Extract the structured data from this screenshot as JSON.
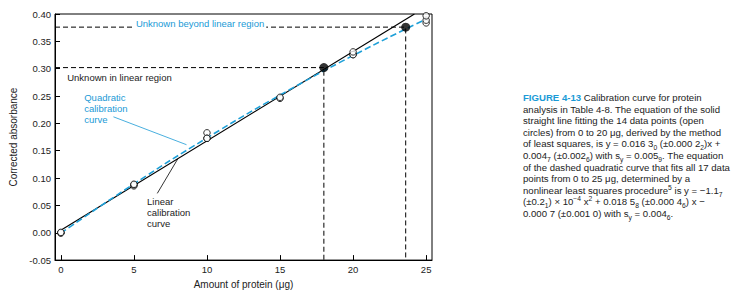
{
  "chart_data": {
    "type": "scatter",
    "x_label": "Amount of protein (μg)",
    "y_label": "Corrected absorbance",
    "xlim": [
      -0.4,
      25.4
    ],
    "xticks": [
      0,
      5,
      10,
      15,
      20,
      25
    ],
    "ylim": [
      -0.05,
      0.4
    ],
    "yticks": [
      -0.05,
      {
        "value": 0,
        "label": "0.00"
      },
      0.05,
      {
        "value": 0.1,
        "label": "0.10"
      },
      0.15,
      {
        "value": 0.2,
        "label": "0.20"
      },
      0.25,
      {
        "value": 0.3,
        "label": "0.30"
      },
      0.35,
      {
        "value": 0.4,
        "label": "0.40"
      }
    ],
    "grid": false,
    "series": [
      {
        "type": "scatter",
        "marker": "open circle",
        "color": "#000000",
        "x": [
          0,
          0,
          0,
          5,
          5,
          5,
          10,
          10,
          10,
          15,
          15,
          20,
          20,
          20,
          25,
          25,
          25
        ],
        "values": [
          -0.0003,
          -0.0003,
          0.0007,
          0.0857,
          0.0877,
          0.0887,
          0.1827,
          0.1727,
          0.1727,
          0.2457,
          0.2477,
          0.3257,
          0.3257,
          0.3307,
          0.3837,
          0.3887,
          0.3967
        ]
      },
      {
        "name": "Linear calibration curve",
        "type": "line",
        "line_style": "solid",
        "color": "#000000",
        "x": [
          0,
          24.2
        ],
        "values": [
          0.0047,
          0.4
        ]
      },
      {
        "name": "Quadratic calibration curve",
        "type": "line",
        "line_style": "dashed",
        "color": "#1ea0d8",
        "x": [
          0,
          5,
          10,
          15,
          20,
          25
        ],
        "values": [
          -0.0007,
          0.0893,
          0.1734,
          0.2517,
          0.3241,
          0.3907
        ]
      },
      {
        "name": "Unknown in linear region",
        "type": "scatter",
        "marker": "filled circle",
        "line_style": "dashed",
        "color": "#000000",
        "x": [
          18.0
        ],
        "values": [
          0.302
        ]
      },
      {
        "name": "Unknown beyond linear region",
        "type": "scatter",
        "marker": "filled circle",
        "line_style": "dashed",
        "color": "#000000",
        "x": [
          23.6
        ],
        "values": [
          0.376
        ]
      }
    ],
    "caption": {
      "label": "FIGURE 4-13",
      "segments": [
        "Calibration curve for protein analysis in Table 4-8. The equation of the solid straight line fitting the 14 data points (open circles) from 0 to 20 μg, derived by the method of least squares, is y = 0.016 3",
        {
          "sub": "0"
        },
        " (±0.000 2",
        {
          "sub": "2"
        },
        ")x + 0.004",
        {
          "sub": "7"
        },
        " (±0.002",
        {
          "sub": "6"
        },
        ") with s",
        {
          "sub": "y"
        },
        " = 0.005",
        {
          "sub": "9"
        },
        ". The equation of the dashed quadratic curve that fits all 17 data points from 0 to 25 μg, determined by a nonlinear least squares procedure",
        {
          "sup": "5"
        },
        " is y = −1.1",
        {
          "sub": "7"
        },
        " (±0.2",
        {
          "sub": "1"
        },
        ") × 10",
        {
          "sup": "−4"
        },
        " x",
        {
          "sup": "2"
        },
        " + 0.018 5",
        {
          "sub": "8"
        },
        " (±0.000 4",
        {
          "sub": "6"
        },
        ") x − 0.000 7 (±0.001 0) with s",
        {
          "sub": "y"
        },
        " = 0.004",
        {
          "sub": "6"
        },
        "."
      ]
    }
  }
}
